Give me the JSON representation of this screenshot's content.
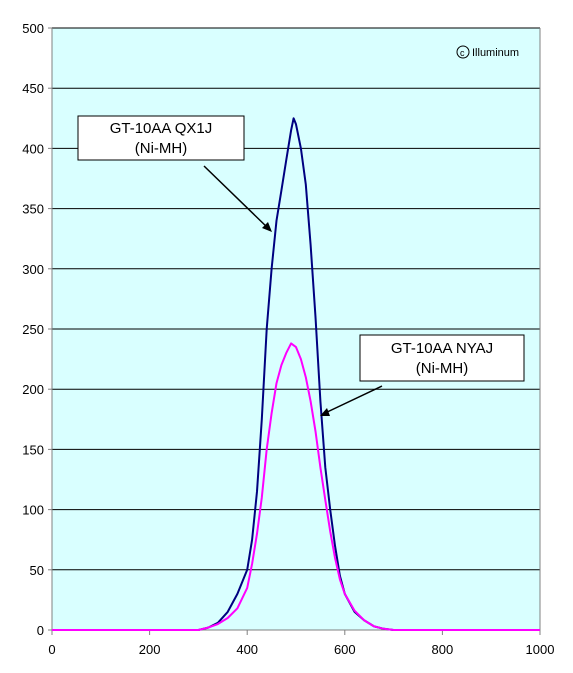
{
  "chart_data": {
    "type": "line",
    "title": "",
    "xlabel": "",
    "ylabel": "",
    "xlim": [
      0,
      1000
    ],
    "ylim": [
      0,
      500
    ],
    "x_ticks": [
      "0",
      "200",
      "400",
      "600",
      "800",
      "1000"
    ],
    "y_ticks": [
      "0",
      "50",
      "100",
      "150",
      "200",
      "250",
      "300",
      "350",
      "400",
      "450",
      "500"
    ],
    "grid": "horizontal",
    "plot_background": "#d9ffff",
    "copyright": "Illuminum",
    "series": [
      {
        "color": "#000080",
        "x": [
          0,
          300,
          320,
          340,
          360,
          380,
          400,
          410,
          420,
          430,
          440,
          450,
          460,
          470,
          480,
          490,
          495,
          500,
          510,
          520,
          530,
          540,
          550,
          560,
          570,
          580,
          590,
          600,
          620,
          640,
          660,
          680,
          700,
          1000
        ],
        "y": [
          0,
          0,
          2,
          6,
          15,
          30,
          50,
          75,
          115,
          175,
          250,
          300,
          340,
          365,
          390,
          415,
          425,
          420,
          400,
          370,
          320,
          260,
          190,
          135,
          100,
          70,
          45,
          30,
          15,
          8,
          3,
          1,
          0,
          0
        ]
      },
      {
        "color": "#ff00ff",
        "x": [
          0,
          300,
          320,
          340,
          360,
          380,
          400,
          410,
          420,
          430,
          440,
          450,
          460,
          470,
          480,
          490,
          500,
          510,
          520,
          530,
          540,
          550,
          560,
          570,
          580,
          590,
          600,
          620,
          640,
          660,
          680,
          700,
          1000
        ],
        "y": [
          0,
          0,
          2,
          5,
          10,
          18,
          35,
          55,
          80,
          110,
          150,
          180,
          205,
          220,
          230,
          238,
          235,
          225,
          210,
          190,
          165,
          135,
          108,
          82,
          60,
          42,
          30,
          16,
          8,
          3,
          1,
          0,
          0
        ]
      }
    ],
    "annotations": [
      {
        "lines": [
          "GT-10AA QX1J",
          "(Ni-MH)"
        ],
        "points_to": {
          "x": 448,
          "y": 330
        }
      },
      {
        "lines": [
          "GT-10AA NYAJ",
          "(Ni-MH)"
        ],
        "points_to": {
          "x": 555,
          "y": 178
        }
      }
    ]
  }
}
